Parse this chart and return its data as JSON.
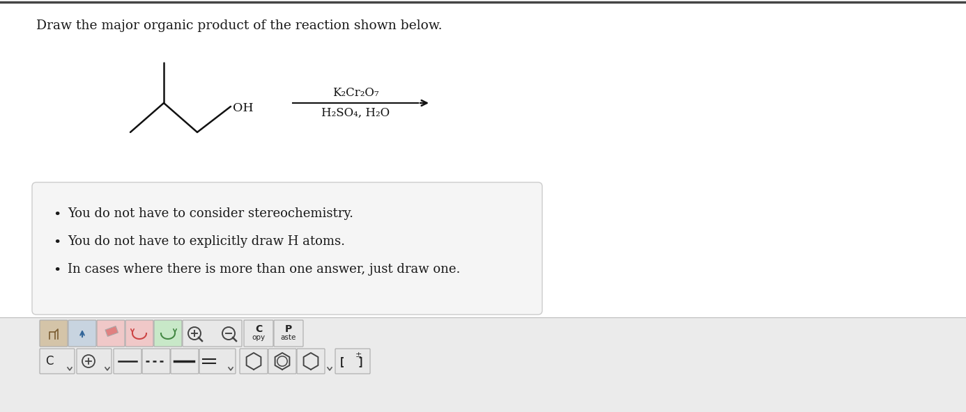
{
  "title": "Draw the major organic product of the reaction shown below.",
  "title_fontsize": 13.5,
  "title_color": "#1a1a1a",
  "bg_color": "#ffffff",
  "top_border_color": "#444444",
  "molecule_color": "#111111",
  "reagent_line_color": "#111111",
  "bullet_box_bg": "#f5f5f5",
  "bullet_box_border": "#cccccc",
  "bullet_points": [
    "You do not have to consider stereochemistry.",
    "You do not have to explicitly draw H atoms.",
    "In cases where there is more than one answer, just draw one."
  ],
  "bullet_fontsize": 13,
  "reagent_top": "K₂Cr₂O₇",
  "reagent_bottom": "H₂SO₄, H₂O",
  "reagent_fontsize": 12,
  "toolbar_bg": "#ebebeb",
  "oh_label": "OH"
}
